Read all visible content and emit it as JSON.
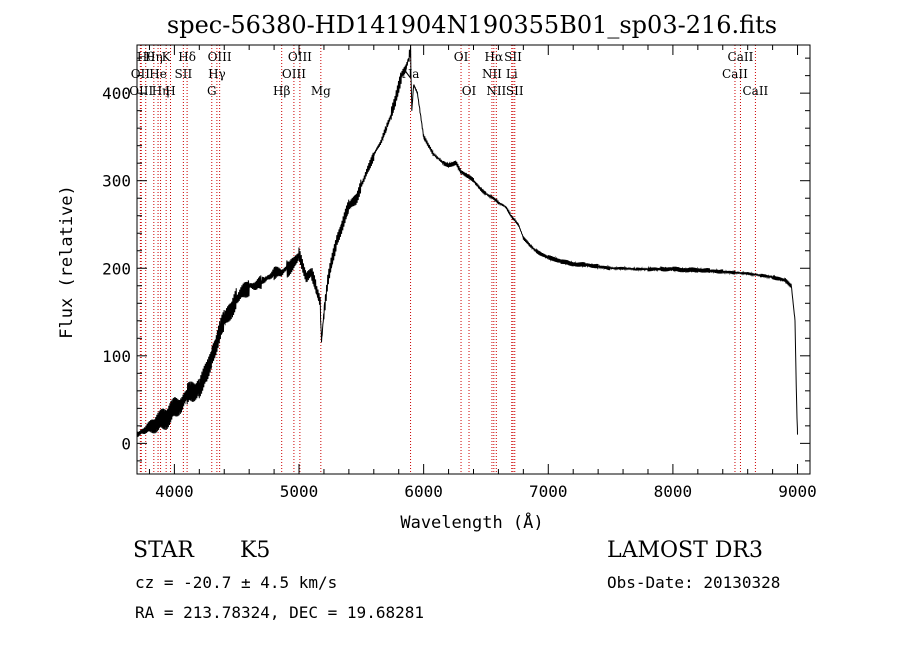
{
  "colors": {
    "line": "#000000",
    "axis": "#000000",
    "marker": "#cc0000",
    "background": "#ffffff"
  },
  "info": {
    "object_class": "STAR",
    "subclass": "K5",
    "survey": "LAMOST DR3",
    "cz": "cz = -20.7 ± 4.5 km/s",
    "obs_date": "Obs-Date: 20130328",
    "radec": "RA = 213.78324, DEC =  19.68281"
  },
  "chart_data": {
    "type": "line",
    "title": "spec-56380-HD141904N190355B01_sp03-216.fits",
    "xlabel": "Wavelength (Å)",
    "ylabel": "Flux (relative)",
    "xlim": [
      3700,
      9100
    ],
    "ylim": [
      -35,
      455
    ],
    "x_ticks": [
      4000,
      5000,
      6000,
      7000,
      8000,
      9000
    ],
    "y_ticks": [
      0,
      100,
      200,
      300,
      400
    ],
    "series": [
      {
        "name": "flux",
        "x": [
          3700,
          3760,
          3820,
          3880,
          3940,
          4000,
          4060,
          4100,
          4160,
          4200,
          4260,
          4300,
          4360,
          4400,
          4460,
          4500,
          4560,
          4600,
          4660,
          4700,
          4760,
          4800,
          4860,
          4900,
          4960,
          5000,
          5060,
          5100,
          5140,
          5170,
          5180,
          5200,
          5230,
          5260,
          5300,
          5360,
          5400,
          5460,
          5500,
          5560,
          5600,
          5660,
          5700,
          5740,
          5780,
          5820,
          5860,
          5880,
          5895,
          5905,
          5920,
          5950,
          5980,
          6000,
          6040,
          6080,
          6120,
          6160,
          6200,
          6260,
          6300,
          6360,
          6400,
          6460,
          6500,
          6560,
          6600,
          6660,
          6700,
          6760,
          6800,
          6860,
          6900,
          6960,
          7000,
          7060,
          7100,
          7160,
          7200,
          7260,
          7300,
          7400,
          7500,
          7600,
          7700,
          7800,
          7900,
          8000,
          8100,
          8200,
          8300,
          8400,
          8500,
          8600,
          8700,
          8800,
          8900,
          8950,
          8980,
          8990,
          9000
        ],
        "y": [
          10,
          15,
          20,
          25,
          30,
          40,
          45,
          55,
          60,
          65,
          80,
          100,
          125,
          140,
          155,
          165,
          175,
          180,
          180,
          185,
          190,
          195,
          195,
          200,
          205,
          215,
          190,
          195,
          175,
          160,
          115,
          150,
          185,
          205,
          230,
          255,
          270,
          280,
          295,
          315,
          330,
          345,
          360,
          375,
          395,
          420,
          430,
          440,
          448,
          380,
          410,
          400,
          370,
          350,
          340,
          330,
          325,
          320,
          318,
          320,
          310,
          305,
          300,
          290,
          285,
          280,
          275,
          270,
          260,
          250,
          235,
          225,
          220,
          215,
          212,
          210,
          208,
          206,
          205,
          204,
          204,
          202,
          200,
          200,
          199,
          199,
          199,
          199,
          198,
          198,
          197,
          196,
          195,
          194,
          192,
          190,
          186,
          180,
          140,
          60,
          10
        ]
      }
    ],
    "lines": [
      {
        "wave": 3727,
        "row": 1,
        "label": "OII"
      },
      {
        "wave": 3734,
        "row": 2,
        "label": "OIII"
      },
      {
        "wave": 3770,
        "row": 0,
        "label": "Hθ"
      },
      {
        "wave": 3835,
        "row": 0,
        "label": "Hη"
      },
      {
        "wave": 3869,
        "row": 1,
        "label": "He"
      },
      {
        "wave": 3889,
        "row": 2,
        "label": "Hη"
      },
      {
        "wave": 3934,
        "row": 0,
        "label": "K"
      },
      {
        "wave": 3969,
        "row": 2,
        "label": "H"
      },
      {
        "wave": 4072,
        "row": 1,
        "label": "SII"
      },
      {
        "wave": 4102,
        "row": 0,
        "label": "Hδ"
      },
      {
        "wave": 4300,
        "row": 2,
        "label": "G"
      },
      {
        "wave": 4341,
        "row": 1,
        "label": "Hγ"
      },
      {
        "wave": 4363,
        "row": 0,
        "label": "OIII"
      },
      {
        "wave": 4861,
        "row": 2,
        "label": "Hβ"
      },
      {
        "wave": 4959,
        "row": 1,
        "label": "OIII"
      },
      {
        "wave": 5007,
        "row": 0,
        "label": "OIII"
      },
      {
        "wave": 5175,
        "row": 2,
        "label": "Mg"
      },
      {
        "wave": 5895,
        "row": 1,
        "label": "Na"
      },
      {
        "wave": 6300,
        "row": 0,
        "label": "OI"
      },
      {
        "wave": 6364,
        "row": 2,
        "label": "OI"
      },
      {
        "wave": 6548,
        "row": 1,
        "label": "NII"
      },
      {
        "wave": 6563,
        "row": 0,
        "label": "Hα"
      },
      {
        "wave": 6583,
        "row": 2,
        "label": "NII"
      },
      {
        "wave": 6707,
        "row": 1,
        "label": "Li"
      },
      {
        "wave": 6717,
        "row": 0,
        "label": "SII"
      },
      {
        "wave": 6731,
        "row": 2,
        "label": "SII"
      },
      {
        "wave": 8498,
        "row": 1,
        "label": "CaII"
      },
      {
        "wave": 8542,
        "row": 0,
        "label": "CaII"
      },
      {
        "wave": 8662,
        "row": 2,
        "label": "CaII"
      }
    ]
  }
}
